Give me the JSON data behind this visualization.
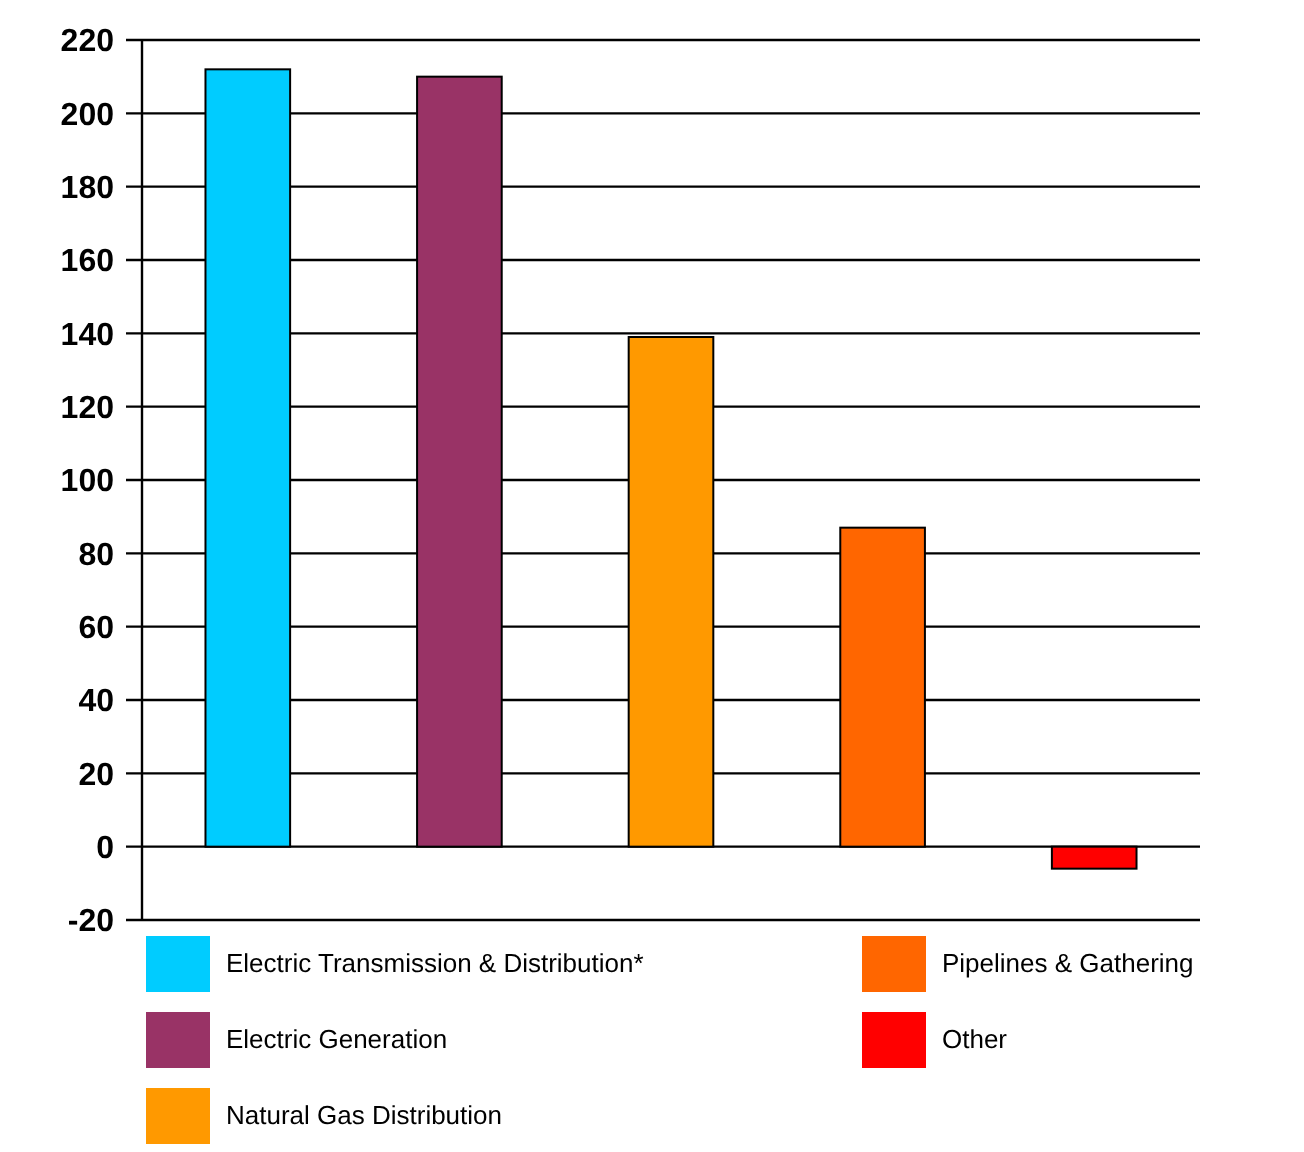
{
  "chart_data": {
    "type": "bar",
    "categories": [
      null,
      null,
      null,
      null,
      null
    ],
    "stacked": true,
    "series": [
      {
        "name": "Electric Transmission & Distribution*",
        "color": "#00ccff",
        "values": [
          212,
          null,
          null,
          null,
          null
        ]
      },
      {
        "name": "Electric Generation",
        "color": "#993366",
        "values": [
          null,
          210,
          null,
          null,
          null
        ]
      },
      {
        "name": "Natural Gas Distribution",
        "color": "#ff9900",
        "values": [
          null,
          null,
          139,
          null,
          null
        ]
      },
      {
        "name": "Pipelines & Gathering",
        "color": "#ff6600",
        "values": [
          null,
          null,
          null,
          87,
          null
        ]
      },
      {
        "name": "Other",
        "color": "#ff0000",
        "values": [
          null,
          null,
          null,
          null,
          -6
        ]
      }
    ],
    "ylim": [
      -20,
      220
    ],
    "yticks": [
      -20,
      0,
      20,
      40,
      60,
      80,
      100,
      120,
      140,
      160,
      180,
      200,
      220
    ],
    "grid": "y",
    "legend": "bottom",
    "tick_labels": "y"
  }
}
